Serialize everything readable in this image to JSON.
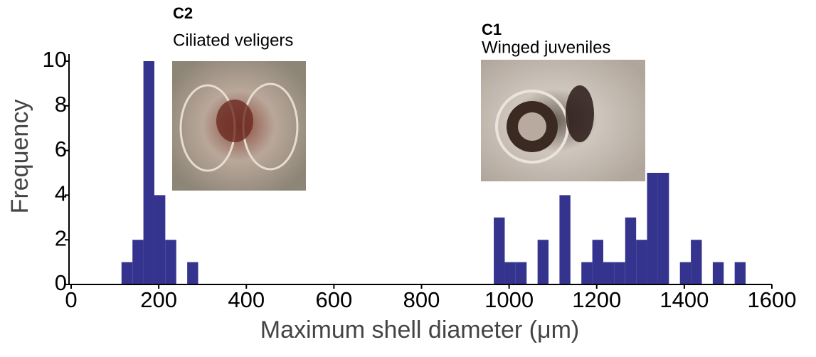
{
  "chart_data": {
    "type": "histogram",
    "xlabel": "Maximum shell diameter (μm)",
    "ylabel": "Frequency",
    "bins": [
      115,
      140,
      165,
      190,
      215,
      240,
      265,
      290,
      315,
      340,
      365,
      390,
      415,
      440,
      465,
      490,
      515,
      540,
      565,
      590,
      615,
      640,
      665,
      690,
      715,
      740,
      765,
      790,
      815,
      840,
      865,
      890,
      915,
      940,
      965,
      990,
      1015,
      1040,
      1065,
      1090,
      1115,
      1140,
      1165,
      1190,
      1215,
      1240,
      1265,
      1290,
      1315,
      1340,
      1365,
      1390,
      1415,
      1440,
      1465,
      1490,
      1515,
      1540
    ],
    "values": [
      1,
      2,
      10,
      4,
      2,
      0,
      1,
      0,
      0,
      0,
      0,
      0,
      0,
      0,
      0,
      0,
      0,
      0,
      0,
      0,
      0,
      0,
      0,
      0,
      0,
      0,
      0,
      0,
      0,
      0,
      0,
      0,
      0,
      0,
      3,
      1,
      1,
      0,
      2,
      0,
      4,
      0,
      1,
      2,
      1,
      1,
      3,
      2,
      5,
      5,
      0,
      1,
      2,
      0,
      1,
      0,
      1
    ],
    "color": "#34348f",
    "xlim": [
      0,
      1600
    ],
    "xticks": [
      0,
      200,
      400,
      600,
      800,
      1000,
      1200,
      1400,
      1600
    ],
    "ylim": [
      0,
      10
    ],
    "yticks": [
      0,
      2,
      4,
      6,
      8,
      10
    ],
    "annotations": [
      {
        "label": "C2",
        "text": "Ciliated veligers"
      },
      {
        "label": "C1",
        "text": "Winged juveniles"
      }
    ]
  }
}
